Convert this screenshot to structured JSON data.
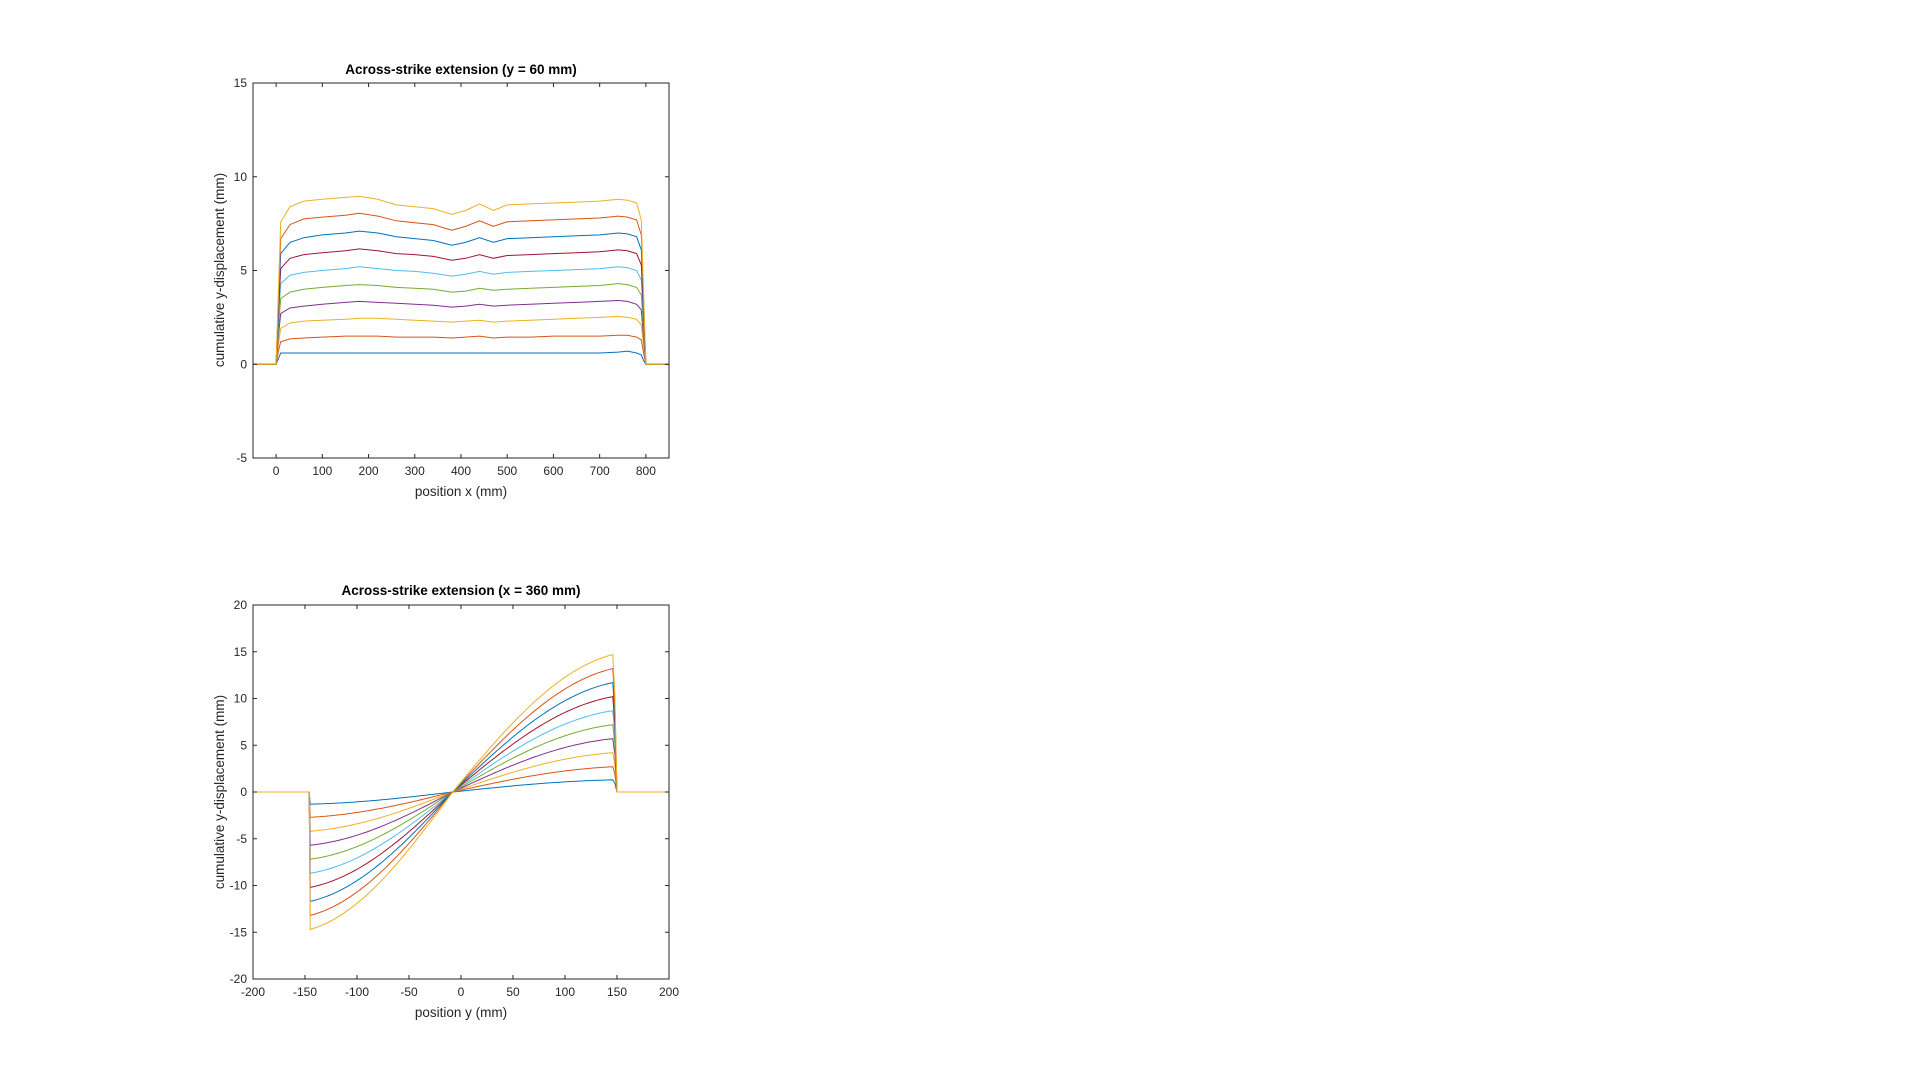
{
  "colors": [
    "#0072BD",
    "#D95319",
    "#EDB120",
    "#7E2F8E",
    "#77AC30",
    "#4DBEEE",
    "#A2142F"
  ],
  "chart_data": [
    {
      "type": "line",
      "title": "Across-strike extension (y = 60 mm)",
      "xlabel": "position x (mm)",
      "ylabel": "cumulative y-displacement (mm)",
      "xlim": [
        -50,
        850
      ],
      "ylim": [
        -5,
        15
      ],
      "xticks": [
        0,
        100,
        200,
        300,
        400,
        500,
        600,
        700,
        800
      ],
      "yticks": [
        -5,
        0,
        5,
        10,
        15
      ],
      "xtick_labels": [
        "0",
        "100",
        "200",
        "300",
        "400",
        "500",
        "600",
        "700",
        "800"
      ],
      "ytick_labels": [
        "-5",
        "0",
        "5",
        "10",
        "15"
      ],
      "grid": false,
      "series": [
        {
          "x": [
            -50,
            0,
            5,
            10,
            30,
            60,
            100,
            150,
            180,
            220,
            260,
            300,
            340,
            380,
            410,
            440,
            470,
            500,
            550,
            600,
            650,
            700,
            740,
            760,
            780,
            790,
            795,
            800,
            850
          ],
          "y": [
            0,
            0,
            0.3,
            0.6,
            0.6,
            0.6,
            0.6,
            0.6,
            0.6,
            0.6,
            0.6,
            0.6,
            0.6,
            0.6,
            0.6,
            0.6,
            0.6,
            0.6,
            0.6,
            0.6,
            0.6,
            0.6,
            0.65,
            0.7,
            0.6,
            0.5,
            0.2,
            0,
            0
          ]
        },
        {
          "x": [
            -50,
            0,
            5,
            10,
            30,
            60,
            100,
            150,
            180,
            220,
            260,
            300,
            340,
            380,
            410,
            440,
            470,
            500,
            550,
            600,
            650,
            700,
            740,
            760,
            780,
            790,
            795,
            800,
            850
          ],
          "y": [
            0,
            0,
            0.7,
            1.2,
            1.35,
            1.4,
            1.45,
            1.5,
            1.5,
            1.5,
            1.45,
            1.45,
            1.45,
            1.4,
            1.45,
            1.5,
            1.4,
            1.45,
            1.45,
            1.5,
            1.5,
            1.5,
            1.55,
            1.55,
            1.45,
            1.3,
            0.6,
            0,
            0
          ]
        },
        {
          "x": [
            -50,
            0,
            5,
            10,
            30,
            60,
            100,
            150,
            180,
            220,
            260,
            300,
            340,
            380,
            410,
            440,
            470,
            500,
            550,
            600,
            650,
            700,
            740,
            760,
            780,
            790,
            795,
            800,
            850
          ],
          "y": [
            0,
            0,
            1.1,
            1.9,
            2.2,
            2.3,
            2.35,
            2.4,
            2.45,
            2.45,
            2.4,
            2.35,
            2.3,
            2.25,
            2.3,
            2.35,
            2.25,
            2.3,
            2.35,
            2.4,
            2.45,
            2.5,
            2.55,
            2.5,
            2.4,
            2.1,
            1.0,
            0,
            0
          ]
        },
        {
          "x": [
            -50,
            0,
            5,
            10,
            30,
            60,
            100,
            150,
            180,
            220,
            260,
            300,
            340,
            380,
            410,
            440,
            470,
            500,
            550,
            600,
            650,
            700,
            740,
            760,
            780,
            790,
            795,
            800,
            850
          ],
          "y": [
            0,
            0,
            1.5,
            2.7,
            3.0,
            3.1,
            3.2,
            3.3,
            3.35,
            3.3,
            3.25,
            3.2,
            3.15,
            3.05,
            3.1,
            3.2,
            3.1,
            3.15,
            3.2,
            3.25,
            3.3,
            3.35,
            3.4,
            3.35,
            3.2,
            2.9,
            1.4,
            0,
            0
          ]
        },
        {
          "x": [
            -50,
            0,
            5,
            10,
            30,
            60,
            100,
            150,
            180,
            220,
            260,
            300,
            340,
            380,
            410,
            440,
            470,
            500,
            550,
            600,
            650,
            700,
            740,
            760,
            780,
            790,
            795,
            800,
            850
          ],
          "y": [
            0,
            0,
            1.9,
            3.5,
            3.85,
            4.0,
            4.1,
            4.2,
            4.25,
            4.2,
            4.1,
            4.05,
            4.0,
            3.85,
            3.9,
            4.05,
            3.95,
            4.0,
            4.05,
            4.1,
            4.15,
            4.2,
            4.3,
            4.25,
            4.1,
            3.7,
            1.8,
            0,
            0
          ]
        },
        {
          "x": [
            -50,
            0,
            5,
            10,
            30,
            60,
            100,
            150,
            180,
            220,
            260,
            300,
            340,
            380,
            410,
            440,
            470,
            500,
            550,
            600,
            650,
            700,
            740,
            760,
            780,
            790,
            795,
            800,
            850
          ],
          "y": [
            0,
            0,
            2.3,
            4.3,
            4.75,
            4.9,
            5.0,
            5.1,
            5.2,
            5.1,
            5.0,
            4.95,
            4.85,
            4.7,
            4.8,
            4.95,
            4.8,
            4.9,
            4.95,
            5.0,
            5.05,
            5.1,
            5.2,
            5.15,
            5.0,
            4.5,
            2.2,
            0,
            0
          ]
        },
        {
          "x": [
            -50,
            0,
            5,
            10,
            30,
            60,
            100,
            150,
            180,
            220,
            260,
            300,
            340,
            380,
            410,
            440,
            470,
            500,
            550,
            600,
            650,
            700,
            740,
            760,
            780,
            790,
            795,
            800,
            850
          ],
          "y": [
            0,
            0,
            2.7,
            5.1,
            5.65,
            5.85,
            5.95,
            6.05,
            6.15,
            6.05,
            5.9,
            5.85,
            5.75,
            5.55,
            5.65,
            5.85,
            5.65,
            5.8,
            5.85,
            5.9,
            5.95,
            6.0,
            6.1,
            6.05,
            5.9,
            5.3,
            2.6,
            0,
            0
          ]
        },
        {
          "x": [
            -50,
            0,
            5,
            10,
            30,
            60,
            100,
            150,
            180,
            220,
            260,
            300,
            340,
            380,
            410,
            440,
            470,
            500,
            550,
            600,
            650,
            700,
            740,
            760,
            780,
            790,
            795,
            800,
            850
          ],
          "y": [
            0,
            0,
            3.1,
            5.9,
            6.5,
            6.75,
            6.9,
            7.0,
            7.1,
            7.0,
            6.8,
            6.7,
            6.6,
            6.35,
            6.5,
            6.75,
            6.5,
            6.7,
            6.75,
            6.8,
            6.85,
            6.9,
            7.0,
            6.95,
            6.8,
            6.1,
            3.0,
            0,
            0
          ]
        },
        {
          "x": [
            -50,
            0,
            5,
            10,
            30,
            60,
            100,
            150,
            180,
            220,
            260,
            300,
            340,
            380,
            410,
            440,
            470,
            500,
            550,
            600,
            650,
            700,
            740,
            760,
            780,
            790,
            795,
            800,
            850
          ],
          "y": [
            0,
            0,
            3.5,
            6.7,
            7.45,
            7.75,
            7.85,
            7.95,
            8.05,
            7.9,
            7.65,
            7.55,
            7.45,
            7.15,
            7.35,
            7.65,
            7.35,
            7.6,
            7.65,
            7.7,
            7.75,
            7.8,
            7.9,
            7.85,
            7.7,
            6.9,
            3.4,
            0,
            0
          ]
        },
        {
          "x": [
            -50,
            0,
            5,
            10,
            30,
            60,
            100,
            150,
            180,
            220,
            260,
            300,
            340,
            380,
            410,
            440,
            470,
            500,
            550,
            600,
            650,
            700,
            740,
            760,
            780,
            790,
            795,
            800,
            850
          ],
          "y": [
            0,
            0,
            3.9,
            7.6,
            8.4,
            8.7,
            8.8,
            8.9,
            8.95,
            8.8,
            8.5,
            8.4,
            8.3,
            8.0,
            8.2,
            8.55,
            8.2,
            8.5,
            8.55,
            8.6,
            8.65,
            8.7,
            8.8,
            8.75,
            8.6,
            7.7,
            3.8,
            0,
            0
          ]
        }
      ]
    },
    {
      "type": "line",
      "title": "Across-strike extension (x = 360 mm)",
      "xlabel": "position y (mm)",
      "ylabel": "cumulative y-displacement (mm)",
      "xlim": [
        -200,
        200
      ],
      "ylim": [
        -20,
        20
      ],
      "xticks": [
        -200,
        -150,
        -100,
        -50,
        0,
        50,
        100,
        150,
        200
      ],
      "yticks": [
        -20,
        -15,
        -10,
        -5,
        0,
        5,
        10,
        15,
        20
      ],
      "xtick_labels": [
        "-200",
        "-150",
        "-100",
        "-50",
        "0",
        "50",
        "100",
        "150",
        "200"
      ],
      "ytick_labels": [
        "-20",
        "-15",
        "-10",
        "-5",
        "0",
        "5",
        "10",
        "15",
        "20"
      ],
      "grid": false,
      "amplitudes": [
        1.3,
        2.7,
        4.2,
        5.7,
        7.2,
        8.7,
        10.2,
        11.7,
        13.2,
        14.7
      ],
      "fault_y": [
        -145,
        146
      ],
      "series_note": ""
    }
  ]
}
